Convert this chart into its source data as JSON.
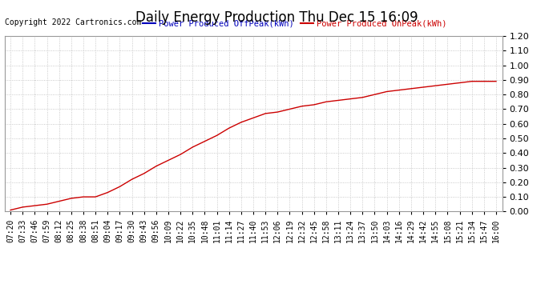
{
  "title": "Daily Energy Production Thu Dec 15 16:09",
  "copyright": "Copyright 2022 Cartronics.com",
  "legend_offpeak": "Power Produced OffPeak(kWh)",
  "legend_onpeak": "Power Produced OnPeak(kWh)",
  "offpeak_color": "#0000bb",
  "onpeak_color": "#cc0000",
  "line_color": "#cc0000",
  "background_color": "#ffffff",
  "grid_color": "#bbbbbb",
  "ylim": [
    0.0,
    1.2
  ],
  "yticks": [
    0.0,
    0.1,
    0.2,
    0.3,
    0.4,
    0.5,
    0.6,
    0.7,
    0.8,
    0.9,
    1.0,
    1.1,
    1.2
  ],
  "x_labels": [
    "07:20",
    "07:33",
    "07:46",
    "07:59",
    "08:12",
    "08:25",
    "08:38",
    "08:51",
    "09:04",
    "09:17",
    "09:30",
    "09:43",
    "09:56",
    "10:09",
    "10:22",
    "10:35",
    "10:48",
    "11:01",
    "11:14",
    "11:27",
    "11:40",
    "11:53",
    "12:06",
    "12:19",
    "12:32",
    "12:45",
    "12:58",
    "13:11",
    "13:24",
    "13:37",
    "13:50",
    "14:03",
    "14:16",
    "14:29",
    "14:42",
    "14:55",
    "15:08",
    "15:21",
    "15:34",
    "15:47",
    "16:00"
  ],
  "y_values": [
    0.01,
    0.03,
    0.04,
    0.05,
    0.07,
    0.09,
    0.1,
    0.1,
    0.13,
    0.17,
    0.22,
    0.26,
    0.31,
    0.35,
    0.39,
    0.44,
    0.48,
    0.52,
    0.57,
    0.61,
    0.64,
    0.67,
    0.68,
    0.7,
    0.72,
    0.73,
    0.75,
    0.76,
    0.77,
    0.78,
    0.8,
    0.82,
    0.83,
    0.84,
    0.85,
    0.86,
    0.87,
    0.88,
    0.89,
    0.89,
    0.89
  ],
  "title_fontsize": 12,
  "copyright_fontsize": 7,
  "legend_fontsize": 7.5,
  "tick_fontsize": 7,
  "ytick_fontsize": 8
}
